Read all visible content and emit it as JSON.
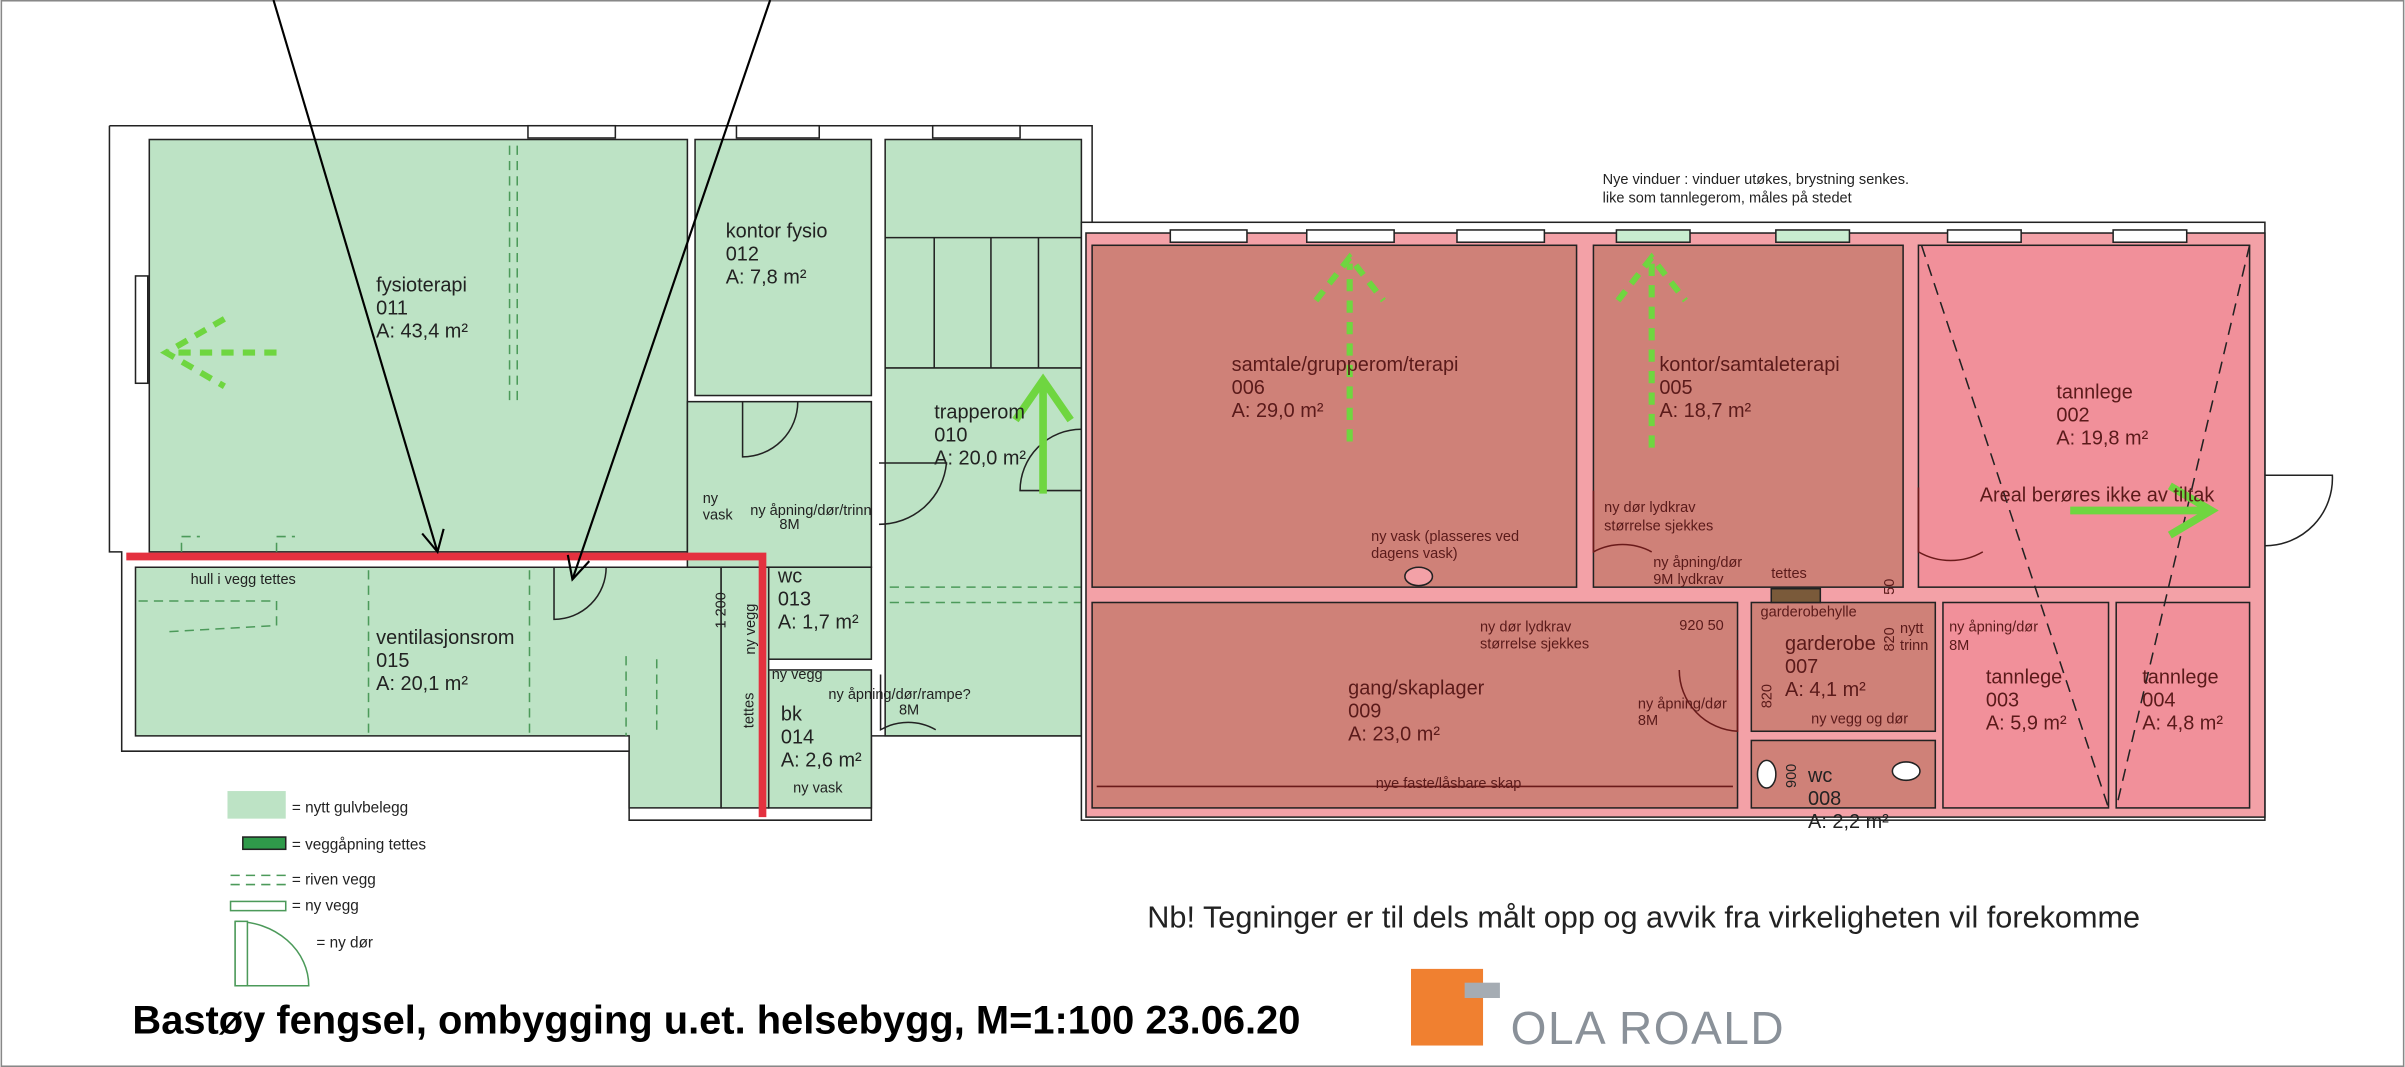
{
  "header": {
    "title": "Bastøy fengsel, ombygging u.et. helsebygg, M=1:100   23.06.20",
    "logo": "OLA ROALD",
    "note": "Nb! Tegninger er til dels målt opp og avvik fra virkeligheten vil forekomme"
  },
  "rooms": [
    {
      "name": "fysioterapi",
      "number": "011",
      "area": "A: 43,4 m²"
    },
    {
      "name": "kontor fysio",
      "number": "012",
      "area": "A:    7,8 m²"
    },
    {
      "name": "trapperom",
      "number": "010",
      "area": "A: 20,0 m²"
    },
    {
      "name": "samtale/grupperom/terapi",
      "number": "006",
      "area": "A:                    29,0 m²"
    },
    {
      "name": "kontor/samtaleterapi",
      "number": "005",
      "area": "A:                 18,7 m²"
    },
    {
      "name": "tannlege",
      "number": "002",
      "area": "A: 19,8 m²"
    },
    {
      "name": "ventilasjonsrom",
      "number": "015",
      "area": "A:           20,1 m²"
    },
    {
      "name": "wc",
      "number": "013",
      "area": "A: 1,7 m²"
    },
    {
      "name": "bk",
      "number": "014",
      "area": "A: 2,6 m²"
    },
    {
      "name": "gang/skaplager",
      "number": "009",
      "area": "A:           23,0 m²"
    },
    {
      "name": "garderobe",
      "number": "007",
      "area": "A:  4,1 m²"
    },
    {
      "name": "wc",
      "number": "008",
      "area": "A: 2,2 m²"
    },
    {
      "name": "tannlege",
      "number": "003",
      "area": "A: 5,9 m²"
    },
    {
      "name": "tannlege",
      "number": "004",
      "area": "A: 4,8 m²"
    }
  ],
  "annotations": [
    "Nye vinduer : vinduer utøkes, brystning senkes.",
    "like som tannlegerom, måles på stedet",
    "ny",
    "vask",
    "ny åpning/dør/trinn",
    "8M",
    "hull i vegg tettes",
    "1 200",
    "ny vegg",
    "ny vegg",
    "ny åpning/dør/rampe?",
    "8M",
    "tettes",
    "ny vask",
    "ny vask (plasseres ved",
    "dagens vask)",
    "ny dør lydkrav",
    "størrelse sjekkes",
    "ny åpning/dør",
    "9M lydkrav",
    "tettes",
    "ny dør lydkrav",
    "størrelse sjekkes",
    "920 50",
    "garderobehylle",
    "nytt",
    "trinn",
    "ny åpning/dør",
    "8M",
    "ny åpning/dør",
    "8M",
    "820",
    "820",
    "50",
    "900",
    "ny vegg og dør",
    "nye faste/låsbare skap",
    "Areal berøres ikke av tiltak"
  ],
  "legend": [
    "= nytt gulvbelegg",
    "= veggåpning tettes",
    "= riven vegg",
    "= ny vegg",
    "= ny dør"
  ]
}
